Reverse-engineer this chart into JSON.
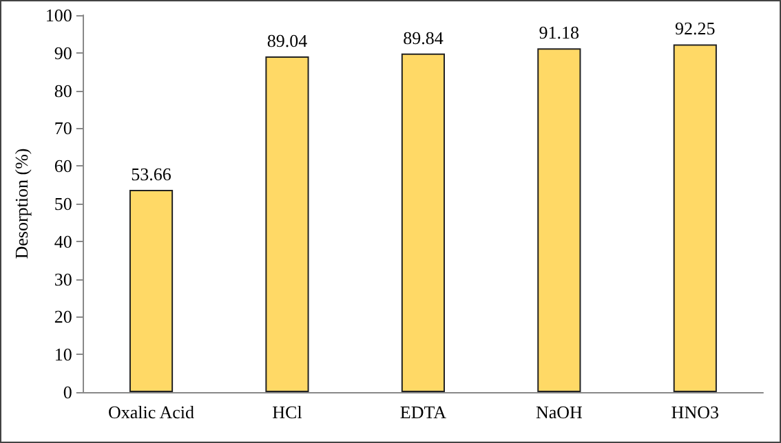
{
  "chart_data": {
    "type": "bar",
    "ylabel": "Desorption (%)",
    "categories": [
      "Oxalic Acid",
      "HCl",
      "EDTA",
      "NaOH",
      "HNO3"
    ],
    "values": [
      53.66,
      89.04,
      89.84,
      91.18,
      92.25
    ],
    "color": "#ffd966",
    "ylim": [
      0,
      100
    ],
    "yticks": [
      0,
      10,
      20,
      30,
      40,
      50,
      60,
      70,
      80,
      90,
      100
    ],
    "data_labels": true
  }
}
